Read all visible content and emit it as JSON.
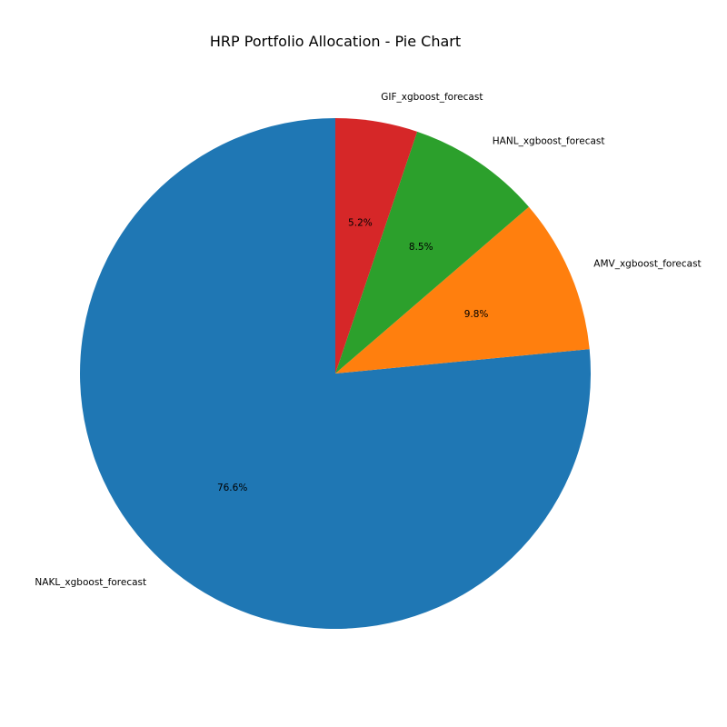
{
  "chart_data": {
    "type": "pie",
    "title": "HRP Portfolio Allocation - Pie Chart",
    "start_angle_deg": 90,
    "direction": "counterclockwise",
    "slices": [
      {
        "label": "NAKL_xgboost_forecast",
        "value": 76.6,
        "pct_label": "76.6%",
        "color": "#1f77b4"
      },
      {
        "label": "AMV_xgboost_forecast",
        "value": 9.8,
        "pct_label": "9.8%",
        "color": "#ff7f0e"
      },
      {
        "label": "HANL_xgboost_forecast",
        "value": 8.5,
        "pct_label": "8.5%",
        "color": "#2ca02c"
      },
      {
        "label": "GIF_xgboost_forecast",
        "value": 5.2,
        "pct_label": "5.2%",
        "color": "#d62728"
      }
    ]
  }
}
